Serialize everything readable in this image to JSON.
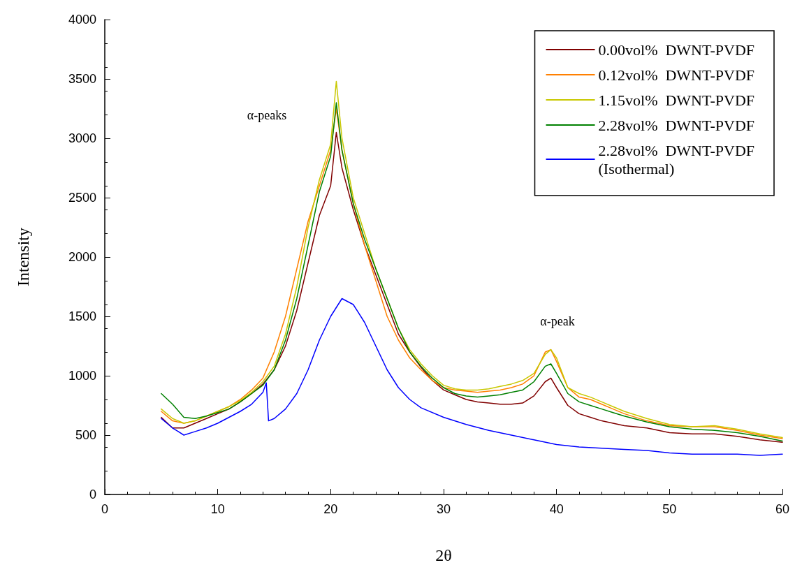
{
  "chart_data": {
    "type": "line",
    "xlabel": "2θ",
    "ylabel": "Intensity",
    "xlim": [
      0,
      60
    ],
    "xticks": [
      0,
      10,
      20,
      30,
      40,
      50,
      60
    ],
    "ylim": [
      0,
      4000
    ],
    "yticks": [
      0,
      500,
      1000,
      1500,
      2000,
      2500,
      3000,
      3500,
      4000
    ],
    "grid": false,
    "legend": "top right",
    "marker": "none",
    "line_style": "solid",
    "x": [
      5,
      6,
      7,
      8,
      9,
      10,
      11,
      12,
      13,
      14,
      15,
      16,
      17,
      18,
      19,
      20,
      20.5,
      21,
      22,
      23,
      24,
      25,
      26,
      27,
      28,
      29,
      30,
      31,
      32,
      33,
      34,
      35,
      36,
      37,
      38,
      39,
      39.5,
      40,
      41,
      42,
      43,
      44,
      45,
      46,
      48,
      50,
      52,
      54,
      56,
      58,
      60
    ],
    "series": [
      {
        "name": "0.00vol%  DWNT-PVDF",
        "color": "#800000",
        "values": [
          650,
          560,
          560,
          600,
          640,
          680,
          720,
          780,
          850,
          930,
          1050,
          1250,
          1550,
          1950,
          2350,
          2600,
          3050,
          2750,
          2400,
          2100,
          1850,
          1600,
          1350,
          1200,
          1070,
          960,
          880,
          840,
          800,
          780,
          770,
          760,
          760,
          770,
          830,
          950,
          980,
          900,
          750,
          680,
          650,
          620,
          600,
          580,
          560,
          520,
          510,
          510,
          490,
          460,
          440
        ]
      },
      {
        "name": "0.12vol%  DWNT-PVDF",
        "color": "#ff8000",
        "values": [
          700,
          620,
          600,
          620,
          660,
          700,
          740,
          800,
          880,
          980,
          1200,
          1500,
          1900,
          2300,
          2600,
          2900,
          3250,
          2900,
          2450,
          2100,
          1800,
          1500,
          1300,
          1150,
          1050,
          960,
          900,
          880,
          870,
          860,
          870,
          880,
          900,
          930,
          1000,
          1200,
          1220,
          1120,
          900,
          820,
          800,
          760,
          720,
          680,
          620,
          580,
          570,
          570,
          540,
          500,
          470
        ]
      },
      {
        "name": "1.15vol%  DWNT-PVDF",
        "color": "#c8c800",
        "values": [
          720,
          640,
          600,
          620,
          660,
          700,
          740,
          790,
          860,
          950,
          1080,
          1350,
          1750,
          2250,
          2650,
          2950,
          3480,
          3000,
          2500,
          2200,
          1900,
          1650,
          1400,
          1220,
          1100,
          1000,
          920,
          890,
          880,
          880,
          890,
          910,
          930,
          960,
          1020,
          1180,
          1220,
          1150,
          900,
          850,
          820,
          780,
          740,
          700,
          640,
          590,
          570,
          580,
          550,
          510,
          480
        ]
      },
      {
        "name": "2.28vol%  DWNT-PVDF",
        "color": "#008000",
        "values": [
          850,
          760,
          650,
          640,
          660,
          690,
          720,
          780,
          850,
          920,
          1050,
          1300,
          1650,
          2100,
          2550,
          2850,
          3300,
          2900,
          2450,
          2150,
          1900,
          1650,
          1400,
          1200,
          1080,
          980,
          900,
          850,
          830,
          820,
          830,
          840,
          860,
          880,
          950,
          1080,
          1100,
          1020,
          850,
          780,
          750,
          720,
          690,
          660,
          610,
          570,
          550,
          540,
          520,
          490,
          450
        ]
      },
      {
        "name": "2.28vol%  DWNT-PVDF\n(Isothermal)",
        "color": "#0000ff",
        "x": [
          5,
          6,
          7,
          8,
          9,
          10,
          11,
          12,
          13,
          14,
          14.3,
          14.5,
          15,
          16,
          17,
          18,
          19,
          20,
          21,
          22,
          23,
          24,
          25,
          26,
          27,
          28,
          30,
          32,
          34,
          36,
          38,
          40,
          42,
          44,
          46,
          48,
          50,
          52,
          54,
          56,
          58,
          60
        ],
        "values": [
          640,
          560,
          500,
          530,
          560,
          600,
          650,
          700,
          760,
          860,
          940,
          620,
          640,
          720,
          850,
          1050,
          1300,
          1500,
          1650,
          1600,
          1450,
          1250,
          1050,
          900,
          800,
          730,
          650,
          590,
          540,
          500,
          460,
          420,
          400,
          390,
          380,
          370,
          350,
          340,
          340,
          340,
          330,
          340
        ]
      }
    ],
    "annotations": [
      "α-peaks",
      "α-peak"
    ]
  }
}
